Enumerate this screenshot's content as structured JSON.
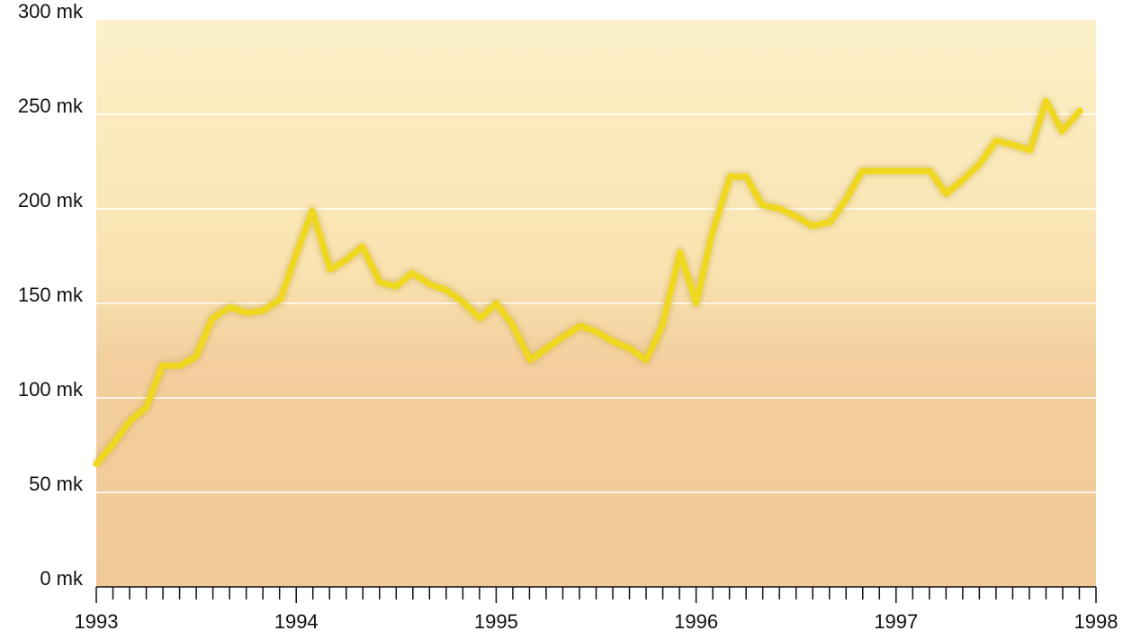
{
  "chart_data": {
    "type": "line",
    "x": [
      1993,
      1993.08,
      1993.17,
      1993.25,
      1993.33,
      1993.42,
      1993.5,
      1993.58,
      1993.67,
      1993.75,
      1993.83,
      1993.92,
      1994,
      1994.08,
      1994.17,
      1994.25,
      1994.33,
      1994.42,
      1994.5,
      1994.58,
      1994.67,
      1994.75,
      1994.83,
      1994.92,
      1995,
      1995.08,
      1995.17,
      1995.25,
      1995.33,
      1995.42,
      1995.5,
      1995.58,
      1995.67,
      1995.75,
      1995.83,
      1995.92,
      1996,
      1996.08,
      1996.17,
      1996.25,
      1996.33,
      1996.42,
      1996.5,
      1996.58,
      1996.67,
      1996.75,
      1996.83,
      1996.92,
      1997,
      1997.08,
      1997.17,
      1997.25,
      1997.33,
      1997.42,
      1997.5,
      1997.58,
      1997.67,
      1997.75,
      1997.83,
      1997.92
    ],
    "series": [
      {
        "color": "#f0d820",
        "values": [
          65,
          75,
          88,
          95,
          117,
          117,
          122,
          142,
          148,
          145,
          146,
          152,
          176,
          199,
          168,
          173,
          180,
          161,
          159,
          166,
          160,
          157,
          151,
          142,
          150,
          139,
          120,
          126,
          132,
          138,
          135,
          130,
          126,
          120,
          138,
          177,
          150,
          187,
          217,
          217,
          202,
          200,
          196,
          191,
          193,
          205,
          220,
          220,
          220,
          220,
          220,
          208,
          215,
          224,
          236,
          234,
          231,
          257,
          241,
          252
        ]
      }
    ],
    "xlim": [
      1993,
      1998
    ],
    "xticks": [
      1993,
      1994,
      1995,
      1996,
      1997,
      1998
    ],
    "ylim": [
      0,
      300
    ],
    "yticks": [
      {
        "value": 0,
        "label": "0 mk"
      },
      {
        "value": 50,
        "label": "50 mk"
      },
      {
        "value": 100,
        "label": "100 mk"
      },
      {
        "value": 150,
        "label": "150 mk"
      },
      {
        "value": 200,
        "label": "200 mk"
      },
      {
        "value": 250,
        "label": "250 mk"
      },
      {
        "value": 300,
        "label": "300 mk"
      }
    ],
    "grid": true
  }
}
